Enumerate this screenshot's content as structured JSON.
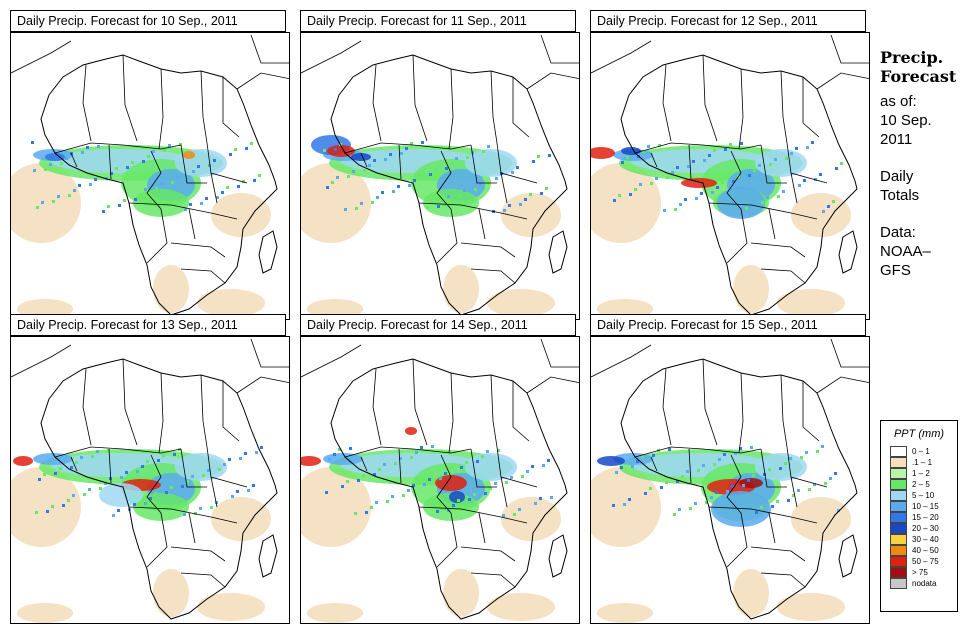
{
  "panels": [
    {
      "title": "Daily Precip. Forecast for  10 Sep., 2011"
    },
    {
      "title": "Daily Precip. Forecast for  11 Sep., 2011"
    },
    {
      "title": "Daily Precip. Forecast for  12 Sep., 2011"
    },
    {
      "title": "Daily Precip. Forecast for  13 Sep., 2011"
    },
    {
      "title": "Daily Precip. Forecast for  14 Sep., 2011"
    },
    {
      "title": "Daily Precip. Forecast for  15 Sep., 2011"
    }
  ],
  "info": {
    "heading1": "Precip.",
    "heading2": "Forecast",
    "line1": "as of:",
    "line2": "10 Sep.",
    "line3": "2011",
    "line4": "Daily",
    "line5": "Totals",
    "line6": "Data:",
    "line7": "NOAA–",
    "line8": "GFS"
  },
  "legend": {
    "title": "PPT (mm)",
    "items": [
      {
        "label": "0 – 1",
        "color": "#ffffff"
      },
      {
        "label": ".1 – 1",
        "color": "#f4dfc0"
      },
      {
        "label": "1 – 2",
        "color": "#b8f5a8"
      },
      {
        "label": "2 – 5",
        "color": "#66e866"
      },
      {
        "label": "5 – 10",
        "color": "#9fd8f5"
      },
      {
        "label": "10 – 15",
        "color": "#5aaaf0"
      },
      {
        "label": "15 – 20",
        "color": "#3377e8"
      },
      {
        "label": "20 – 30",
        "color": "#1848c8"
      },
      {
        "label": "30 – 40",
        "color": "#f8d040"
      },
      {
        "label": "40 – 50",
        "color": "#f08a10"
      },
      {
        "label": "50 – 75",
        "color": "#e02010"
      },
      {
        "label": "> 75",
        "color": "#a01010"
      },
      {
        "label": "nodata",
        "color": "#c8c8c8"
      }
    ]
  }
}
